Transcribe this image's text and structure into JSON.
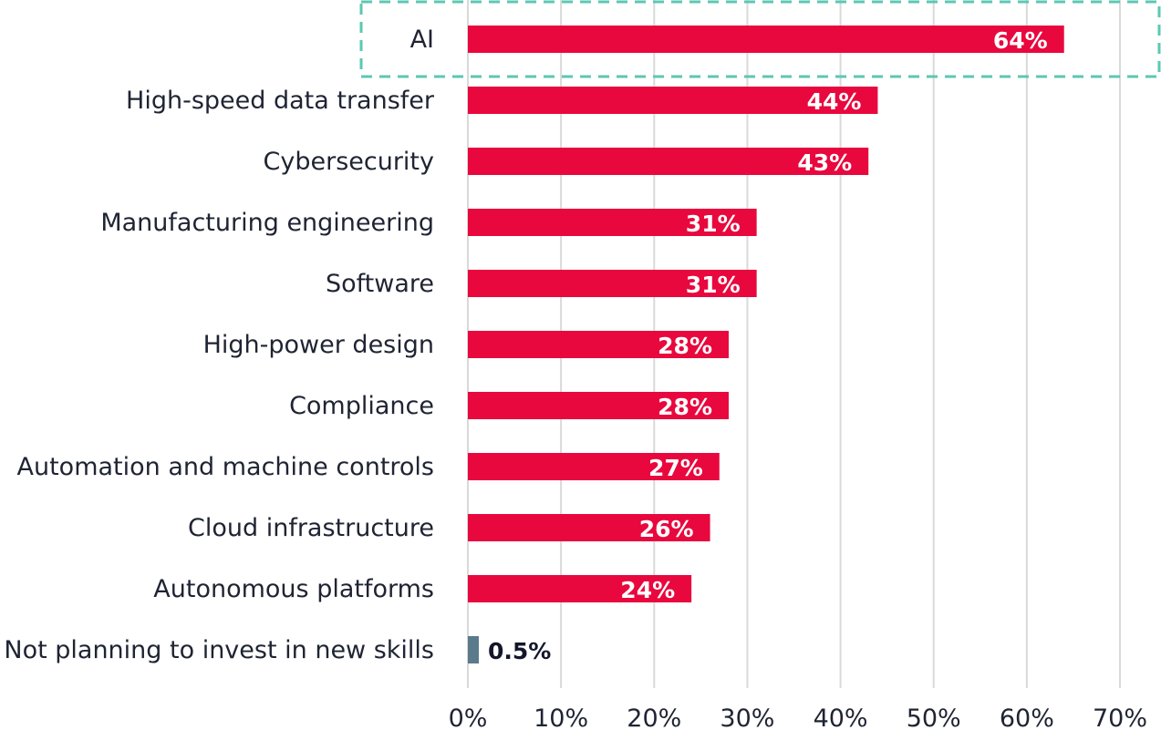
{
  "chart_data": {
    "type": "bar",
    "orientation": "horizontal",
    "title": "",
    "xlabel": "",
    "ylabel": "",
    "xlim": [
      0,
      70
    ],
    "ticks": [
      "0%",
      "10%",
      "20%",
      "30%",
      "40%",
      "50%",
      "60%",
      "70%"
    ],
    "tick_values": [
      0,
      10,
      20,
      30,
      40,
      50,
      60,
      70
    ],
    "grid": "vertical",
    "categories": [
      "AI",
      "High-speed data transfer",
      "Cybersecurity",
      "Manufacturing engineering",
      "Software",
      "High-power design",
      "Compliance",
      "Automation and machine controls",
      "Cloud infrastructure",
      "Autonomous platforms",
      "Not planning to invest in new skills"
    ],
    "values": [
      64,
      44,
      43,
      31,
      31,
      28,
      28,
      27,
      26,
      24,
      0.5
    ],
    "value_labels": [
      "64%",
      "44%",
      "43%",
      "31%",
      "31%",
      "28%",
      "28%",
      "27%",
      "26%",
      "24%",
      "0.5%"
    ],
    "colors": {
      "bar": "#e8083e",
      "bar_muted": "#5b7a8c",
      "highlight_outline": "#5cc7b3"
    },
    "highlighted_category": "AI"
  }
}
